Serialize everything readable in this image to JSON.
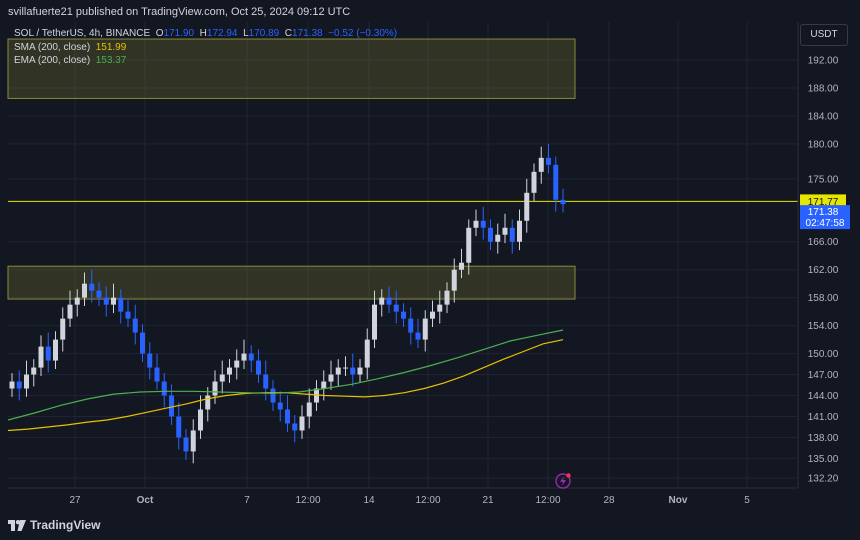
{
  "header": {
    "publisher": "svillafuerte21 published on TradingView.com, Oct 25, 2024 09:12 UTC"
  },
  "legend": {
    "symbol": "SOL / TetherUS, 4h, BINANCE",
    "o_label": "O",
    "o_value": "171.90",
    "h_label": "H",
    "h_value": "172.94",
    "l_label": "L",
    "l_value": "170.89",
    "c_label": "C",
    "c_value": "171.38",
    "change": "−0.52 (−0.30%)",
    "sma_label": "SMA (200, close)",
    "sma_value": "151.99",
    "ema_label": "EMA (200, close)",
    "ema_value": "153.37"
  },
  "price_axis": {
    "currency": "USDT",
    "labels": [
      "192.00",
      "188.00",
      "184.00",
      "180.00",
      "175.00",
      "171.77",
      "171.38",
      "02:47:58",
      "166.00",
      "162.00",
      "158.00",
      "154.00",
      "150.00",
      "147.00",
      "144.00",
      "141.00",
      "138.00",
      "135.00",
      "132.20"
    ]
  },
  "footer": {
    "brand": "TradingView"
  },
  "colors": {
    "background": "#131722",
    "up": "#d1d4dc",
    "down": "#2962ff",
    "sma": "#e6c200",
    "ema": "#4caf50",
    "zone": "#6b6a2a",
    "level": "#e6e600"
  },
  "chart_data": {
    "type": "candlestick",
    "symbol": "SOL / TetherUS",
    "interval": "4h",
    "x_ticks": [
      "27",
      "Oct",
      "7",
      "12:00",
      "14",
      "12:00",
      "21",
      "12:00",
      "28",
      "Nov",
      "5"
    ],
    "y_ticks": [
      192.0,
      188.0,
      184.0,
      180.0,
      175.0,
      166.0,
      162.0,
      158.0,
      154.0,
      150.0,
      147.0,
      144.0,
      141.0,
      138.0,
      135.0,
      132.2
    ],
    "ylim": [
      131.0,
      195.0
    ],
    "resistance_level": 171.77,
    "last_price": 171.38,
    "countdown": "02:47:58",
    "zones": [
      {
        "top": 195.0,
        "bottom": 186.5
      },
      {
        "top": 162.5,
        "bottom": 157.8
      }
    ],
    "close_path": [
      146,
      145,
      147,
      148,
      151,
      149,
      152,
      155,
      157,
      158,
      160,
      159,
      158,
      157,
      158,
      156,
      155,
      153,
      150,
      148,
      146,
      144,
      141,
      138,
      136,
      139,
      142,
      144,
      146,
      147,
      148,
      149,
      150,
      149,
      147,
      145,
      143,
      142,
      140,
      139,
      141,
      143,
      145,
      146,
      147,
      148,
      148,
      147,
      148,
      152,
      157,
      158,
      157,
      156,
      155,
      153,
      152,
      155,
      156,
      157,
      159,
      162,
      163,
      168,
      169,
      168,
      166,
      167,
      168,
      166,
      169,
      173,
      176,
      178,
      177,
      172,
      171.38
    ],
    "sma_path": [
      139,
      139.2,
      139.5,
      139.8,
      140.2,
      140.5,
      141,
      141.6,
      142.2,
      142.8,
      143.5,
      144,
      144.3,
      144.4,
      144.4,
      144.2,
      144,
      143.9,
      143.8,
      144,
      144.4,
      145,
      145.8,
      146.8,
      148,
      149.2,
      150.3,
      151.4,
      151.99
    ],
    "ema_path": [
      140.5,
      141.5,
      142.6,
      143.5,
      144.2,
      144.5,
      144.6,
      144.6,
      144.5,
      144.4,
      144.3,
      144.5,
      145,
      145.6,
      146.4,
      147.3,
      148.3,
      149.4,
      150.6,
      151.8,
      152.6,
      153.37
    ]
  }
}
